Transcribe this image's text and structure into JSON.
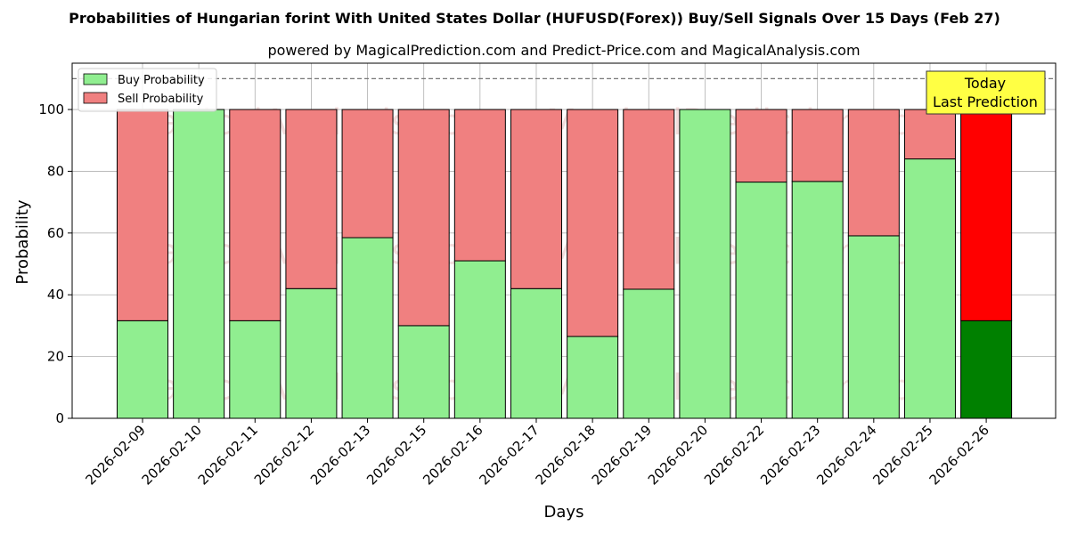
{
  "chart_data": {
    "type": "bar",
    "stacked": true,
    "title": "Probabilities of Hungarian forint With United States Dollar (HUFUSD(Forex)) Buy/Sell Signals Over 15 Days (Feb 27)",
    "subtitle": "powered by MagicalPrediction.com and Predict-Price.com and MagicalAnalysis.com",
    "xlabel": "Days",
    "ylabel": "Probability",
    "ylim": [
      0,
      115
    ],
    "yticks": [
      0,
      20,
      40,
      60,
      80,
      100
    ],
    "reference_line": 110,
    "grid": true,
    "legend_position": "top-left",
    "categories": [
      "2026-02-09",
      "2026-02-10",
      "2026-02-11",
      "2026-02-12",
      "2026-02-13",
      "2026-02-15",
      "2026-02-16",
      "2026-02-17",
      "2026-02-18",
      "2026-02-19",
      "2026-02-20",
      "2026-02-22",
      "2026-02-23",
      "2026-02-24",
      "2026-02-25",
      "2026-02-26"
    ],
    "series": [
      {
        "name": "Buy Probability",
        "values": [
          31.6,
          100,
          31.6,
          42.0,
          58.5,
          30.0,
          51.0,
          42.0,
          26.5,
          41.8,
          100,
          76.5,
          76.7,
          59.1,
          84.0,
          31.6
        ]
      },
      {
        "name": "Sell Probability",
        "values": [
          68.4,
          0,
          68.4,
          58.0,
          41.5,
          70.0,
          49.0,
          58.0,
          73.5,
          58.2,
          0,
          23.5,
          23.3,
          40.9,
          16.0,
          68.4
        ]
      }
    ],
    "colors": {
      "buy": "#90ee90",
      "sell": "#f08080",
      "buy_today": "#008000",
      "sell_today": "#ff0000",
      "annotation_bg": "#ffff44"
    },
    "highlight_index": 15,
    "annotation": {
      "line1": "Today",
      "line2": "Last Prediction"
    },
    "watermarks": [
      "MagicalAnalysis.com",
      "MagicalPrediction.com"
    ]
  }
}
